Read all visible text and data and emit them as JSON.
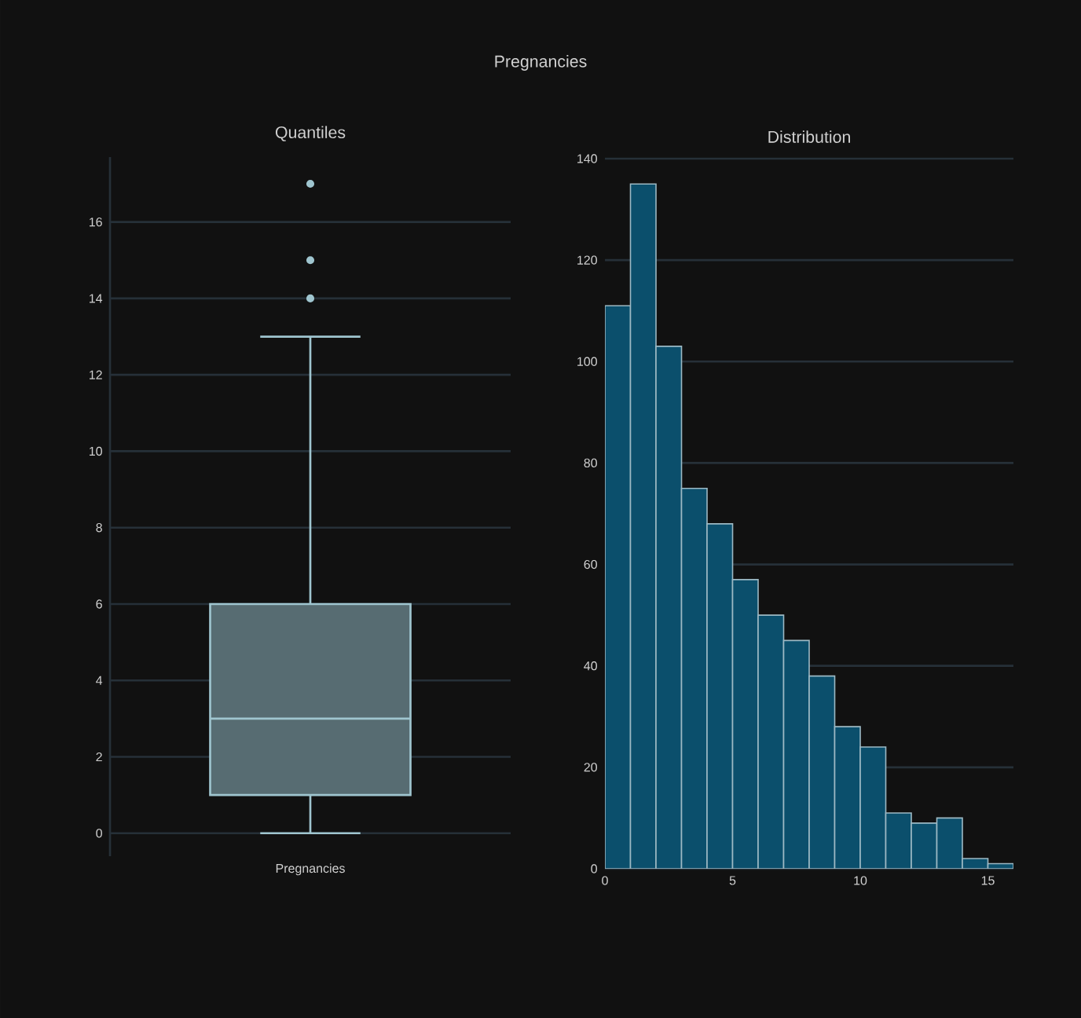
{
  "chart_data": [
    {
      "type": "box",
      "title": "Quantiles",
      "annotations": [
        "Pregnancies"
      ],
      "categories": [
        "Pregnancies"
      ],
      "boxes": [
        {
          "low": 0,
          "q1": 1,
          "median": 3,
          "q3": 6,
          "high": 13,
          "outliers": [
            14,
            15,
            17
          ]
        }
      ],
      "color": "#9fc5cf",
      "ylim": [
        -0.6,
        17.7
      ],
      "yticks": [
        0,
        2,
        4,
        6,
        8,
        10,
        12,
        14,
        16
      ],
      "grid": "y"
    },
    {
      "type": "histogram",
      "title": "Distribution",
      "bins": [
        0,
        1,
        2,
        3,
        4,
        5,
        6,
        7,
        8,
        9,
        10,
        11,
        12,
        13,
        14,
        15,
        16
      ],
      "values": [
        111,
        135,
        103,
        75,
        68,
        57,
        50,
        45,
        38,
        28,
        24,
        11,
        9,
        10,
        2,
        1
      ],
      "color": "#0b4f6c",
      "xlim": [
        0,
        16
      ],
      "xticks": [
        0,
        5,
        10,
        15
      ],
      "ylim": [
        0,
        140
      ],
      "yticks": [
        0,
        20,
        40,
        60,
        80,
        100,
        120,
        140
      ],
      "grid": "y"
    }
  ]
}
